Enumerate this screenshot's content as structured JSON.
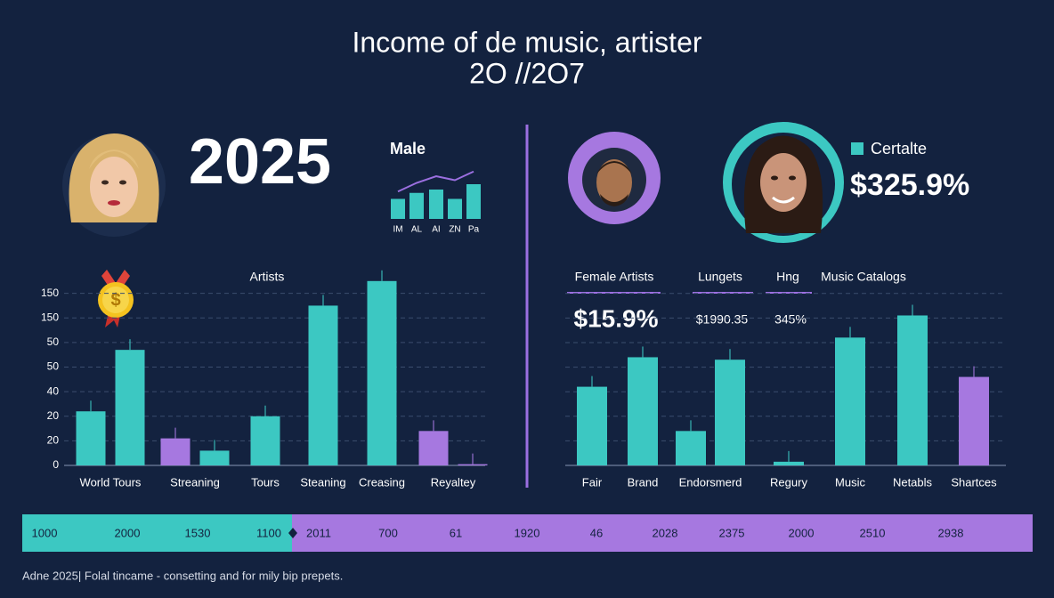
{
  "header": {
    "title": "Income of de music, artister",
    "subtitle": "2O //2O7",
    "year": "2025"
  },
  "male_panel": {
    "label": "Male"
  },
  "right_panel": {
    "legend": "Certalte",
    "value": "$325.9%"
  },
  "right_header": {
    "labels": [
      "Female Artists",
      "Lungets",
      "Hng",
      "Music Catalogs"
    ],
    "values": [
      "$15.9%",
      "$1990.35",
      "345%"
    ]
  },
  "chart_data": [
    {
      "type": "bar",
      "title": "Artists",
      "categories": [
        "World Tours",
        "Streaning",
        "Tours",
        "Steaning",
        "Creasing",
        "Reyaltey"
      ],
      "series": [
        {
          "values": [
            2.2,
            1.1,
            2.0,
            6.5,
            7.5,
            1.4
          ],
          "colors": [
            "#3cc8c2",
            "#a678e0",
            "#3cc8c2",
            "#3cc8c2",
            "#3cc8c2",
            "#a678e0"
          ]
        },
        {
          "values": [
            4.7,
            0.6,
            null,
            null,
            null,
            0.05
          ],
          "colors": [
            "#3cc8c2",
            "#3cc8c2",
            null,
            null,
            null,
            "#a678e0"
          ]
        }
      ],
      "ylim": [
        0,
        8
      ],
      "yticks": [
        {
          "value": 0,
          "label": "0"
        },
        {
          "value": 1,
          "label": "20"
        },
        {
          "value": 2,
          "label": "20"
        },
        {
          "value": 3,
          "label": "40"
        },
        {
          "value": 4,
          "label": "50"
        },
        {
          "value": 5,
          "label": "50"
        },
        {
          "value": 6,
          "label": "150"
        },
        {
          "value": 7,
          "label": "150"
        }
      ],
      "grid": true
    },
    {
      "type": "bar",
      "categories": [
        "Fair",
        "Brand",
        "Endorsmerd",
        "Regury",
        "Music",
        "Netabls",
        "Shartces"
      ],
      "series": [
        {
          "values": [
            3.2,
            4.4,
            1.4,
            0.15,
            5.2,
            6.1,
            3.6
          ],
          "colors": [
            "#3cc8c2",
            "#3cc8c2",
            "#3cc8c2",
            "#3cc8c2",
            "#3cc8c2",
            "#3cc8c2",
            "#a678e0"
          ]
        },
        {
          "values": [
            null,
            null,
            4.3,
            null,
            null,
            null,
            null
          ],
          "colors": [
            null,
            null,
            "#3cc8c2",
            null,
            null,
            null,
            null
          ]
        }
      ],
      "ylim": [
        0,
        8
      ]
    },
    {
      "type": "bar",
      "categories": [
        "IM",
        "AL",
        "AI",
        "ZN",
        "Pa"
      ],
      "series": [
        {
          "values": [
            30,
            39,
            44,
            30,
            52
          ],
          "colors": [
            "#3cc8c2",
            "#3cc8c2",
            "#3cc8c2",
            "#3cc8c2",
            "#3cc8c2"
          ]
        },
        {
          "type": "line",
          "color": "#9b6fe0",
          "values": [
            41,
            54,
            64,
            58,
            71
          ]
        }
      ],
      "ylim": [
        0,
        80
      ]
    }
  ],
  "band": {
    "values": [
      "1000",
      "2000",
      "1530",
      "1100",
      "2011",
      "700",
      "61",
      "1920",
      "46",
      "2028",
      "2375",
      "2000",
      "2510",
      "2938"
    ]
  },
  "footer": {
    "text": "Adne 2025| Folal tincame - consetting and for mily bip prepets."
  }
}
